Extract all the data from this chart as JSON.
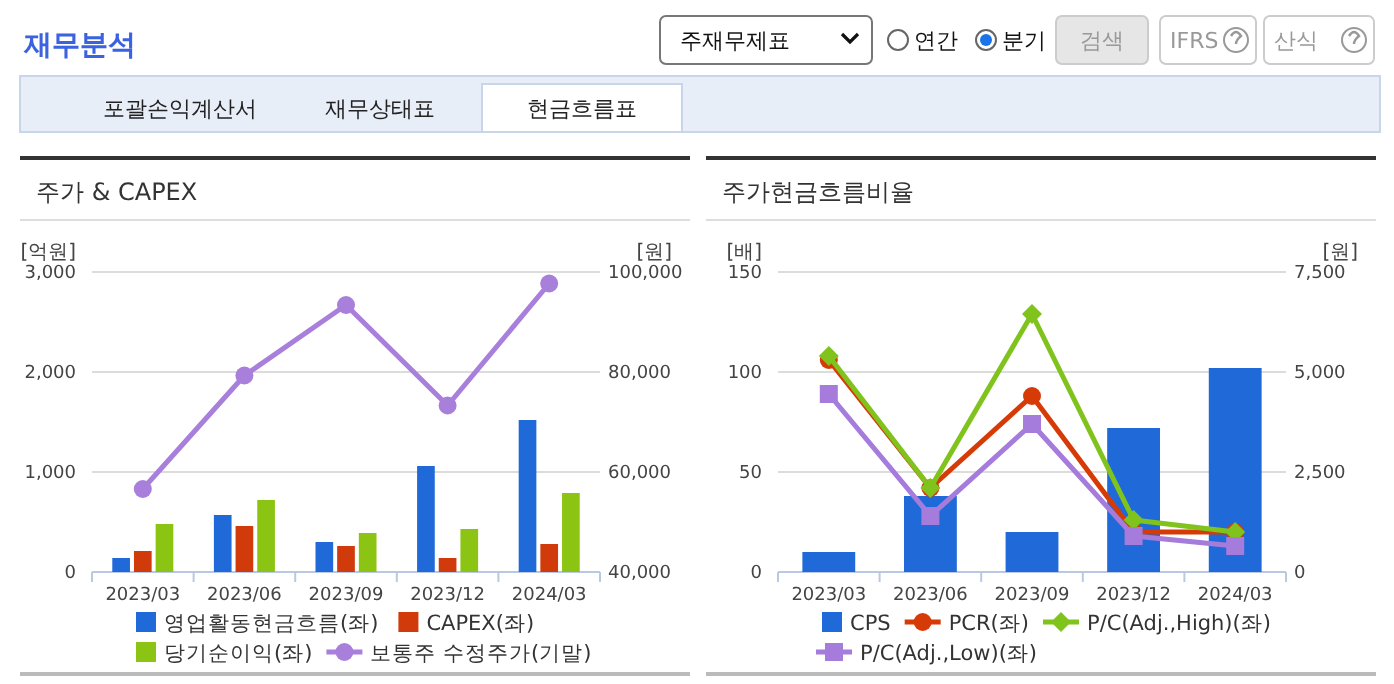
{
  "chart_data": [
    {
      "type": "other",
      "title": "재무분석",
      "annotations": [
        "주재무제표",
        "연간",
        "분기",
        "검색",
        "IFRS",
        "산식",
        "포괄손익계산서",
        "재무상태표",
        "현금흐름표"
      ]
    },
    {
      "type": "bar",
      "title": "주가 & CAPEX",
      "ylabel": "[억원]",
      "y2label": "[원]",
      "categories": [
        "2023/03",
        "2023/06",
        "2023/09",
        "2023/12",
        "2024/03"
      ],
      "ylim": [
        0,
        3000
      ],
      "yticks": [
        0,
        {
          "value": 1000,
          "label": "1,000"
        },
        {
          "value": 2000,
          "label": "2,000"
        },
        {
          "value": 3000,
          "label": "3,000"
        }
      ],
      "y2lim": [
        40000,
        100000
      ],
      "y2ticks": [
        {
          "value": 40000,
          "label": "40,000"
        },
        {
          "value": 60000,
          "label": "60,000"
        },
        {
          "value": 80000,
          "label": "80,000"
        },
        {
          "value": 100000,
          "label": "100,000"
        }
      ],
      "grid": "y",
      "legend": "bottom",
      "series": [
        {
          "name": "영업활동현금흐름(좌)",
          "color": "#1f6ad8",
          "values": [
            140,
            570,
            300,
            1060,
            1520
          ]
        },
        {
          "name": "CAPEX(좌)",
          "color": "#d13a0a",
          "values": [
            210,
            460,
            260,
            140,
            280
          ]
        },
        {
          "name": "당기순이익(좌)",
          "color": "#8cc414",
          "values": [
            480,
            720,
            390,
            430,
            790
          ]
        },
        {
          "name": "보통주 수정주가(기말)",
          "type": "line",
          "axis": "y2",
          "marker": "circle",
          "color": "#a97fdc",
          "values": [
            56600,
            79300,
            93400,
            73300,
            97700
          ]
        }
      ]
    },
    {
      "type": "bar",
      "title": "주가현금흐름비율",
      "ylabel": "[배]",
      "y2label": "[원]",
      "categories": [
        "2023/03",
        "2023/06",
        "2023/09",
        "2023/12",
        "2024/03"
      ],
      "ylim": [
        0,
        150
      ],
      "yticks": [
        0,
        50,
        100,
        150
      ],
      "y2lim": [
        0,
        7500
      ],
      "y2ticks": [
        0,
        {
          "value": 2500,
          "label": "2,500"
        },
        {
          "value": 5000,
          "label": "5,000"
        },
        {
          "value": 7500,
          "label": "7,500"
        }
      ],
      "grid": "y",
      "legend": "bottom",
      "series": [
        {
          "name": "CPS",
          "color": "#1f6ad8",
          "axis": "y2",
          "values": [
            500,
            1900,
            1000,
            3600,
            5100
          ]
        },
        {
          "name": "PCR(좌)",
          "type": "line",
          "marker": "circle",
          "color": "#d63b07",
          "values": [
            106,
            42,
            88,
            20,
            20
          ]
        },
        {
          "name": "P/C(Adj.,High)(좌)",
          "type": "line",
          "marker": "diamond",
          "color": "#7fc31c",
          "values": [
            108,
            42,
            129,
            26,
            20
          ]
        },
        {
          "name": "P/C(Adj.,Low)(좌)",
          "type": "line",
          "marker": "square",
          "color": "#a57bdb",
          "values": [
            89,
            28,
            74,
            18,
            13
          ]
        }
      ]
    }
  ]
}
